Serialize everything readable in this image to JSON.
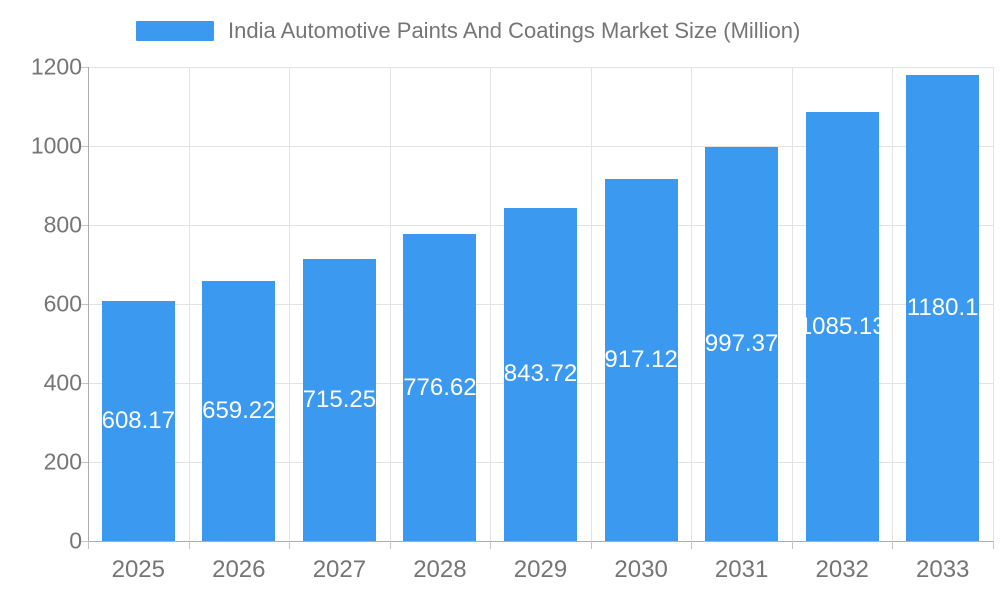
{
  "legend": {
    "label": "India Automotive Paints And Coatings Market Size (Million)",
    "swatch_color": "#3b99f0"
  },
  "chart_data": {
    "type": "bar",
    "title": "India Automotive Paints And Coatings Market Size (Million)",
    "categories": [
      "2025",
      "2026",
      "2027",
      "2028",
      "2029",
      "2030",
      "2031",
      "2032",
      "2033"
    ],
    "values": [
      608.17,
      659.22,
      715.25,
      776.62,
      843.72,
      917.12,
      997.37,
      1085.13,
      1180.1
    ],
    "series_name": "India Automotive Paints And Coatings Market Size (Million)",
    "xlabel": "",
    "ylabel": "",
    "ylim": [
      0,
      1200
    ],
    "yticks": [
      0,
      200,
      400,
      600,
      800,
      1000,
      1200
    ],
    "grid": true,
    "legend_position": "top",
    "value_labels": "inside-center",
    "colors": {
      "bar": "#3b99f0",
      "value_label": "#ffffff",
      "axis_line": "#adadad",
      "grid_line": "#e3e3e3",
      "tick_label": "#757575",
      "background": "#ffffff"
    }
  }
}
